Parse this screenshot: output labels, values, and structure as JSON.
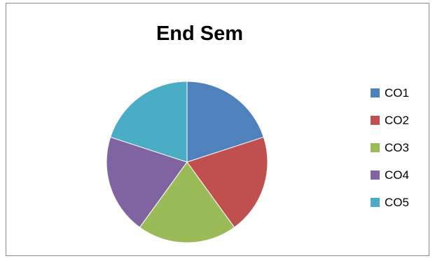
{
  "chart_data": {
    "type": "pie",
    "title": "End Sem",
    "categories": [
      "CO1",
      "CO2",
      "CO3",
      "CO4",
      "CO5"
    ],
    "values": [
      20,
      20,
      20,
      20,
      20
    ],
    "colors": [
      "#4f81bd",
      "#c0504d",
      "#9bbb59",
      "#8064a2",
      "#4bacc6"
    ],
    "start_angle": "12 o'clock",
    "direction": "clockwise",
    "legend_position": "right"
  }
}
